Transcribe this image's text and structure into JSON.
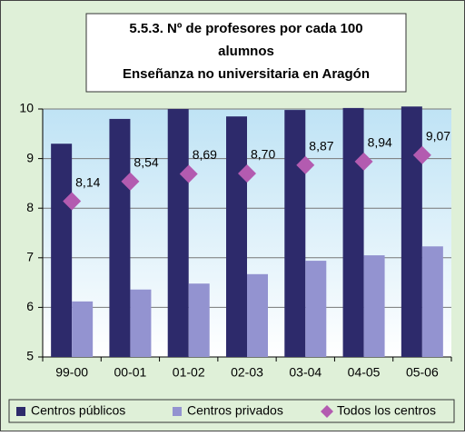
{
  "chart_data": {
    "type": "bar",
    "title": [
      "5.5.3. Nº de profesores por cada 100",
      "alumnos",
      "Enseñanza no universitaria en Aragón"
    ],
    "categories": [
      "99-00",
      "00-01",
      "01-02",
      "02-03",
      "03-04",
      "04-05",
      "05-06"
    ],
    "series": [
      {
        "name": "Centros públicos",
        "type": "bar",
        "color": "#2d2a6b",
        "values": [
          9.3,
          9.8,
          10.0,
          9.85,
          9.98,
          10.02,
          10.05
        ]
      },
      {
        "name": "Centros privados",
        "type": "bar",
        "color": "#9393d0",
        "values": [
          6.12,
          6.36,
          6.48,
          6.67,
          6.94,
          7.05,
          7.23
        ]
      },
      {
        "name": "Todos los centros",
        "type": "marker",
        "color": "#b35bb0",
        "values": [
          8.14,
          8.54,
          8.69,
          8.7,
          8.87,
          8.94,
          9.07
        ],
        "value_labels": [
          "8,14",
          "8,54",
          "8,69",
          "8,70",
          "8,87",
          "8,94",
          "9,07"
        ]
      }
    ],
    "ylim": [
      5,
      10
    ],
    "yticks": [
      5,
      6,
      7,
      8,
      9,
      10
    ],
    "grid": true,
    "legend": "bottom"
  }
}
